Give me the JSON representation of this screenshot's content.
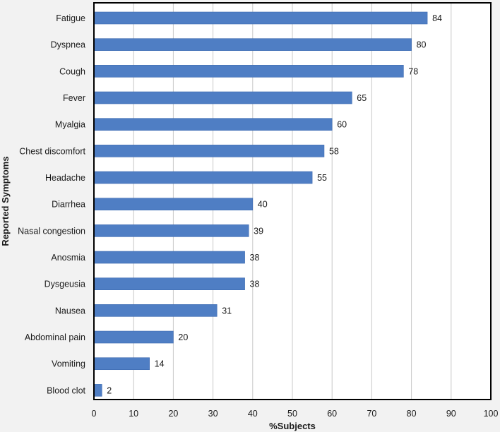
{
  "chart_data": {
    "type": "bar",
    "orientation": "horizontal",
    "categories": [
      "Fatigue",
      "Dyspnea",
      "Cough",
      "Fever",
      "Myalgia",
      "Chest discomfort",
      "Headache",
      "Diarrhea",
      "Nasal congestion",
      "Anosmia",
      "Dysgeusia",
      "Nausea",
      "Abdominal pain",
      "Vomiting",
      "Blood clot"
    ],
    "values": [
      84,
      80,
      78,
      65,
      60,
      58,
      55,
      40,
      39,
      38,
      38,
      31,
      20,
      14,
      2
    ],
    "title": "",
    "xlabel": "%Subjects",
    "ylabel": "Reported Symptoms",
    "xlim": [
      0,
      100
    ],
    "xticks": [
      0,
      10,
      20,
      30,
      40,
      50,
      60,
      70,
      80,
      90,
      100
    ],
    "grid": true,
    "data_labels": true,
    "colors": {
      "bar": "#4f7ec4",
      "bar_edge": "#3c6ab0",
      "grid": "#c8c8c8",
      "frame": "#000000",
      "plot_bg": "#ffffff",
      "page_bg": "#f2f2f2"
    }
  }
}
